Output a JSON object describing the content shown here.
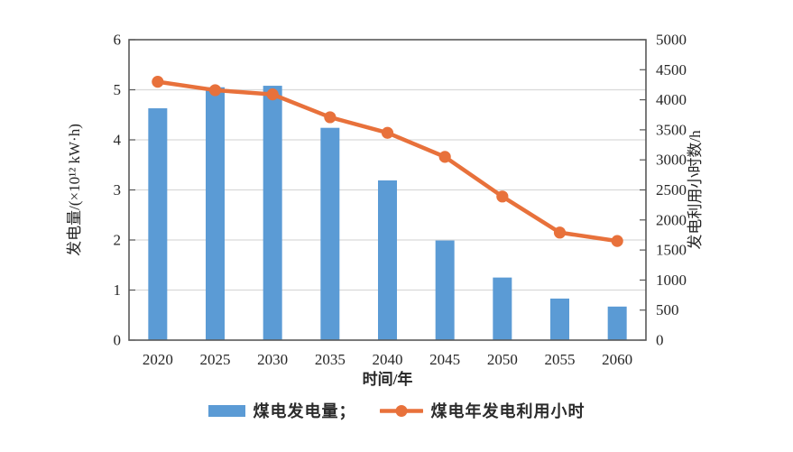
{
  "chart_data": {
    "type": "bar+line",
    "title": "",
    "categories": [
      "2020",
      "2025",
      "2030",
      "2035",
      "2040",
      "2045",
      "2050",
      "2055",
      "2060"
    ],
    "series": [
      {
        "name": "煤电发电量",
        "type": "bar",
        "axis": "left",
        "values": [
          4.63,
          5.05,
          5.08,
          4.24,
          3.19,
          1.99,
          1.25,
          0.83,
          0.67
        ]
      },
      {
        "name": "煤电年发电利用小时",
        "type": "line",
        "axis": "right",
        "values": [
          4300,
          4160,
          4090,
          3710,
          3450,
          3050,
          2390,
          1790,
          1650
        ]
      }
    ],
    "xlabel": "时间/年",
    "ylabel_left": "发电量/(×10¹² kW·h)",
    "ylabel_right": "发电利用小时数/h",
    "y_left_ticks": [
      0,
      1,
      2,
      3,
      4,
      5,
      6
    ],
    "y_right_ticks": [
      0,
      500,
      1000,
      1500,
      2000,
      2500,
      3000,
      3500,
      4000,
      4500,
      5000
    ],
    "ylim_left": [
      0,
      6
    ],
    "ylim_right": [
      0,
      5000
    ],
    "grid": "horizontal-lines-at-left-axis-integers",
    "legend_position": "bottom-center"
  },
  "legend": {
    "bar_label": "煤电发电量；",
    "line_label": "煤电年发电利用小时"
  },
  "colors": {
    "bar": "#5B9BD5",
    "line": "#E8713B",
    "axis": "#595959",
    "grid": "#D9D9D9",
    "text": "#262626"
  }
}
